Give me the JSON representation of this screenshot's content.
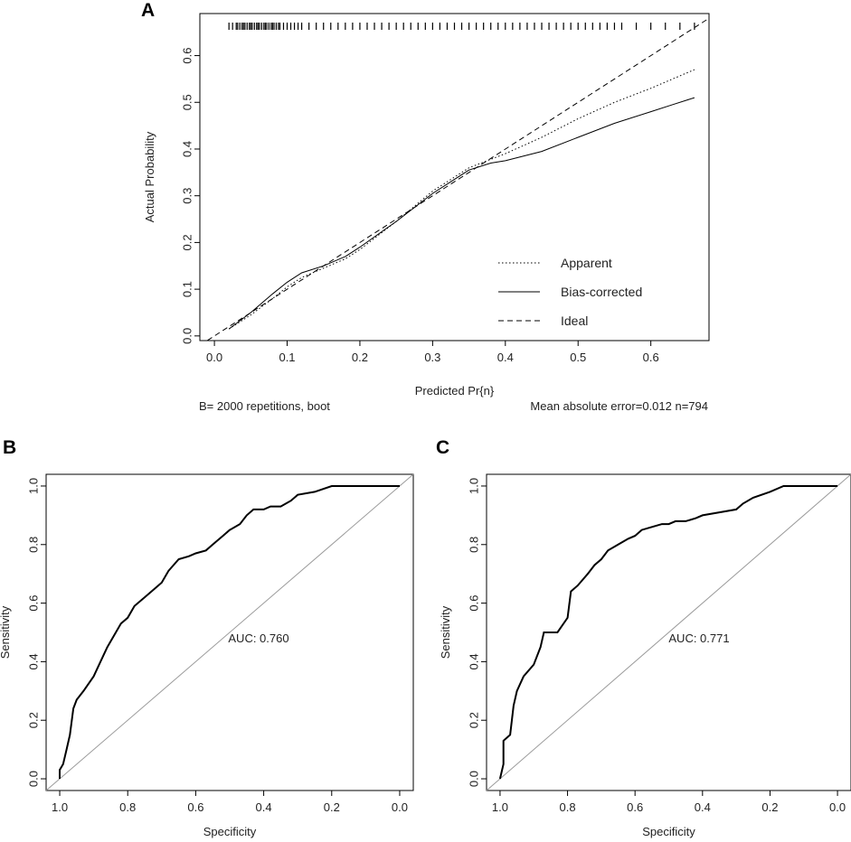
{
  "panel_labels": {
    "a": "A",
    "b": "B",
    "c": "C"
  },
  "chart_data": [
    {
      "panel": "A",
      "type": "line",
      "title": "",
      "xlabel": "Predicted Pr{n}",
      "ylabel": "Actual Probability",
      "xlim": [
        -0.02,
        0.68
      ],
      "ylim": [
        -0.01,
        0.69
      ],
      "xticks": [
        "0.0",
        "0.1",
        "0.2",
        "0.3",
        "0.4",
        "0.5",
        "0.6"
      ],
      "yticks": [
        "0.0",
        "0.1",
        "0.2",
        "0.3",
        "0.4",
        "0.5",
        "0.6"
      ],
      "footnote_left": "B= 2000 repetitions, boot",
      "footnote_right": "Mean absolute error=0.012 n=794",
      "legend_position": "bottom-right",
      "series": [
        {
          "name": "Apparent",
          "style": "dotted",
          "x": [
            0.02,
            0.05,
            0.08,
            0.1,
            0.12,
            0.15,
            0.18,
            0.2,
            0.25,
            0.3,
            0.35,
            0.4,
            0.45,
            0.5,
            0.55,
            0.6,
            0.63,
            0.66
          ],
          "y": [
            0.015,
            0.045,
            0.08,
            0.105,
            0.125,
            0.145,
            0.165,
            0.185,
            0.245,
            0.31,
            0.36,
            0.39,
            0.425,
            0.465,
            0.5,
            0.53,
            0.55,
            0.57
          ]
        },
        {
          "name": "Bias-corrected",
          "style": "solid",
          "x": [
            0.02,
            0.05,
            0.08,
            0.1,
            0.12,
            0.15,
            0.18,
            0.2,
            0.25,
            0.3,
            0.35,
            0.38,
            0.4,
            0.45,
            0.5,
            0.55,
            0.6,
            0.63,
            0.66
          ],
          "y": [
            0.015,
            0.05,
            0.09,
            0.115,
            0.135,
            0.15,
            0.17,
            0.19,
            0.245,
            0.305,
            0.355,
            0.37,
            0.375,
            0.395,
            0.425,
            0.455,
            0.48,
            0.495,
            0.51
          ]
        },
        {
          "name": "Ideal",
          "style": "dashed",
          "x": [
            -0.02,
            0.68
          ],
          "y": [
            -0.02,
            0.68
          ]
        }
      ],
      "rug": {
        "note": "distribution of predicted values shown as tick marks along the top axis",
        "x": [
          0.02,
          0.025,
          0.03,
          0.032,
          0.035,
          0.038,
          0.04,
          0.042,
          0.045,
          0.048,
          0.05,
          0.052,
          0.055,
          0.058,
          0.06,
          0.062,
          0.065,
          0.068,
          0.07,
          0.072,
          0.075,
          0.078,
          0.08,
          0.082,
          0.085,
          0.088,
          0.09,
          0.095,
          0.1,
          0.105,
          0.11,
          0.115,
          0.12,
          0.13,
          0.14,
          0.15,
          0.16,
          0.17,
          0.18,
          0.19,
          0.2,
          0.21,
          0.22,
          0.23,
          0.24,
          0.25,
          0.26,
          0.27,
          0.28,
          0.29,
          0.3,
          0.31,
          0.32,
          0.33,
          0.34,
          0.35,
          0.36,
          0.37,
          0.38,
          0.39,
          0.4,
          0.41,
          0.42,
          0.43,
          0.44,
          0.45,
          0.46,
          0.47,
          0.48,
          0.49,
          0.5,
          0.51,
          0.52,
          0.53,
          0.54,
          0.55,
          0.56,
          0.58,
          0.6,
          0.62,
          0.64,
          0.66
        ]
      }
    },
    {
      "panel": "B",
      "type": "line",
      "title": "",
      "xlabel": "Specificity",
      "ylabel": "Sensitivity",
      "xlim": [
        1.04,
        -0.04
      ],
      "ylim": [
        -0.04,
        1.04
      ],
      "xticks": [
        "1.0",
        "0.8",
        "0.6",
        "0.4",
        "0.2",
        "0.0"
      ],
      "yticks": [
        "0.0",
        "0.2",
        "0.4",
        "0.6",
        "0.8",
        "1.0"
      ],
      "annotation": "AUC: 0.760",
      "series": [
        {
          "name": "ROC",
          "style": "solid",
          "specificity": [
            1.0,
            1.0,
            0.99,
            0.98,
            0.97,
            0.96,
            0.95,
            0.93,
            0.9,
            0.88,
            0.86,
            0.84,
            0.82,
            0.8,
            0.78,
            0.75,
            0.72,
            0.7,
            0.68,
            0.65,
            0.62,
            0.6,
            0.57,
            0.55,
            0.52,
            0.5,
            0.47,
            0.45,
            0.43,
            0.4,
            0.38,
            0.35,
            0.32,
            0.3,
            0.25,
            0.2,
            0.15,
            0.1,
            0.0
          ],
          "sensitivity": [
            0.0,
            0.03,
            0.05,
            0.1,
            0.15,
            0.24,
            0.27,
            0.3,
            0.35,
            0.4,
            0.45,
            0.49,
            0.53,
            0.55,
            0.59,
            0.62,
            0.65,
            0.67,
            0.71,
            0.75,
            0.76,
            0.77,
            0.78,
            0.8,
            0.83,
            0.85,
            0.87,
            0.9,
            0.92,
            0.92,
            0.93,
            0.93,
            0.95,
            0.97,
            0.98,
            1.0,
            1.0,
            1.0,
            1.0
          ]
        },
        {
          "name": "Reference",
          "style": "solid-gray",
          "specificity": [
            1.04,
            -0.04
          ],
          "sensitivity": [
            -0.04,
            1.04
          ]
        }
      ]
    },
    {
      "panel": "C",
      "type": "line",
      "title": "",
      "xlabel": "Specificity",
      "ylabel": "Sensitivity",
      "xlim": [
        1.04,
        -0.04
      ],
      "ylim": [
        -0.04,
        1.04
      ],
      "xticks": [
        "1.0",
        "0.8",
        "0.6",
        "0.4",
        "0.2",
        "0.0"
      ],
      "yticks": [
        "0.0",
        "0.2",
        "0.4",
        "0.6",
        "0.8",
        "1.0"
      ],
      "annotation": "AUC: 0.771",
      "series": [
        {
          "name": "ROC",
          "style": "solid",
          "specificity": [
            1.0,
            0.99,
            0.99,
            0.97,
            0.96,
            0.95,
            0.93,
            0.9,
            0.88,
            0.87,
            0.83,
            0.8,
            0.79,
            0.77,
            0.74,
            0.72,
            0.7,
            0.68,
            0.65,
            0.62,
            0.6,
            0.58,
            0.55,
            0.52,
            0.5,
            0.48,
            0.45,
            0.42,
            0.4,
            0.35,
            0.3,
            0.28,
            0.25,
            0.2,
            0.16,
            0.1,
            0.0
          ],
          "sensitivity": [
            0.0,
            0.05,
            0.13,
            0.15,
            0.25,
            0.3,
            0.35,
            0.39,
            0.45,
            0.5,
            0.5,
            0.55,
            0.64,
            0.66,
            0.7,
            0.73,
            0.75,
            0.78,
            0.8,
            0.82,
            0.83,
            0.85,
            0.86,
            0.87,
            0.87,
            0.88,
            0.88,
            0.89,
            0.9,
            0.91,
            0.92,
            0.94,
            0.96,
            0.98,
            1.0,
            1.0,
            1.0
          ]
        },
        {
          "name": "Reference",
          "style": "solid-gray",
          "specificity": [
            1.04,
            -0.04
          ],
          "sensitivity": [
            -0.04,
            1.04
          ]
        }
      ]
    }
  ]
}
